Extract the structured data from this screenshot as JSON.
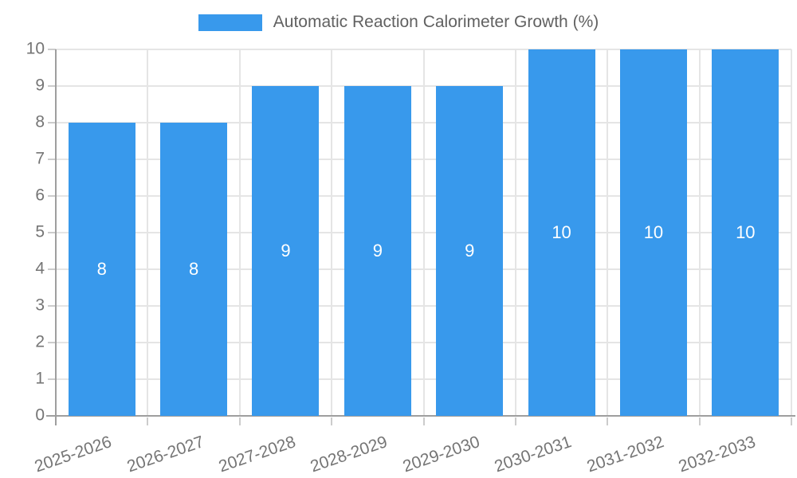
{
  "chart_data": {
    "type": "bar",
    "title": "Automatic Reaction Calorimeter Growth (%)",
    "categories": [
      "2025-2026",
      "2026-2027",
      "2027-2028",
      "2028-2029",
      "2029-2030",
      "2030-2031",
      "2031-2032",
      "2032-2033"
    ],
    "values": [
      8,
      8,
      9,
      9,
      9,
      10,
      10,
      10
    ],
    "value_labels": [
      "8",
      "8",
      "9",
      "9",
      "9",
      "10",
      "10",
      "10"
    ],
    "xlabel": "",
    "ylabel": "",
    "ylim": [
      0,
      10
    ],
    "yticks": [
      0,
      1,
      2,
      3,
      4,
      5,
      6,
      7,
      8,
      9,
      10
    ],
    "grid": "on",
    "legend_position": "top-center"
  },
  "legend": {
    "label": "Automatic Reaction Calorimeter Growth (%)"
  },
  "colors": {
    "bar": "#3899ec",
    "bar_label": "#ffffff",
    "grid": "#e5e5e5",
    "tick": "#cccccc",
    "axis": "#9e9e9e",
    "tick_label": "#757575",
    "legend_text": "#616161",
    "background": "#ffffff"
  }
}
